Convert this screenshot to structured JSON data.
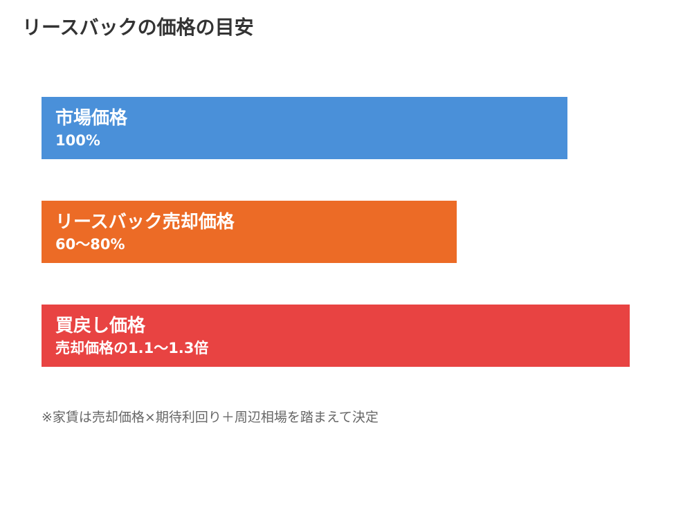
{
  "chart_data": {
    "type": "bar",
    "orientation": "horizontal",
    "title": "リースバックの価格の目安",
    "categories": [
      "市場価格",
      "リースバック売却価格",
      "買戻し価格"
    ],
    "value_labels": [
      "100%",
      "60〜80%",
      "売却価格の1.1〜1.3倍"
    ],
    "values": [
      100,
      78.95,
      111.84
    ],
    "colors": [
      "#4a90d9",
      "#ec6b26",
      "#e84342"
    ],
    "xlim": [
      0,
      118.42
    ],
    "grid": false,
    "legend": "none",
    "note": "※家賃は売却価格×期待利回り＋周辺相場を踏まえて決定"
  }
}
